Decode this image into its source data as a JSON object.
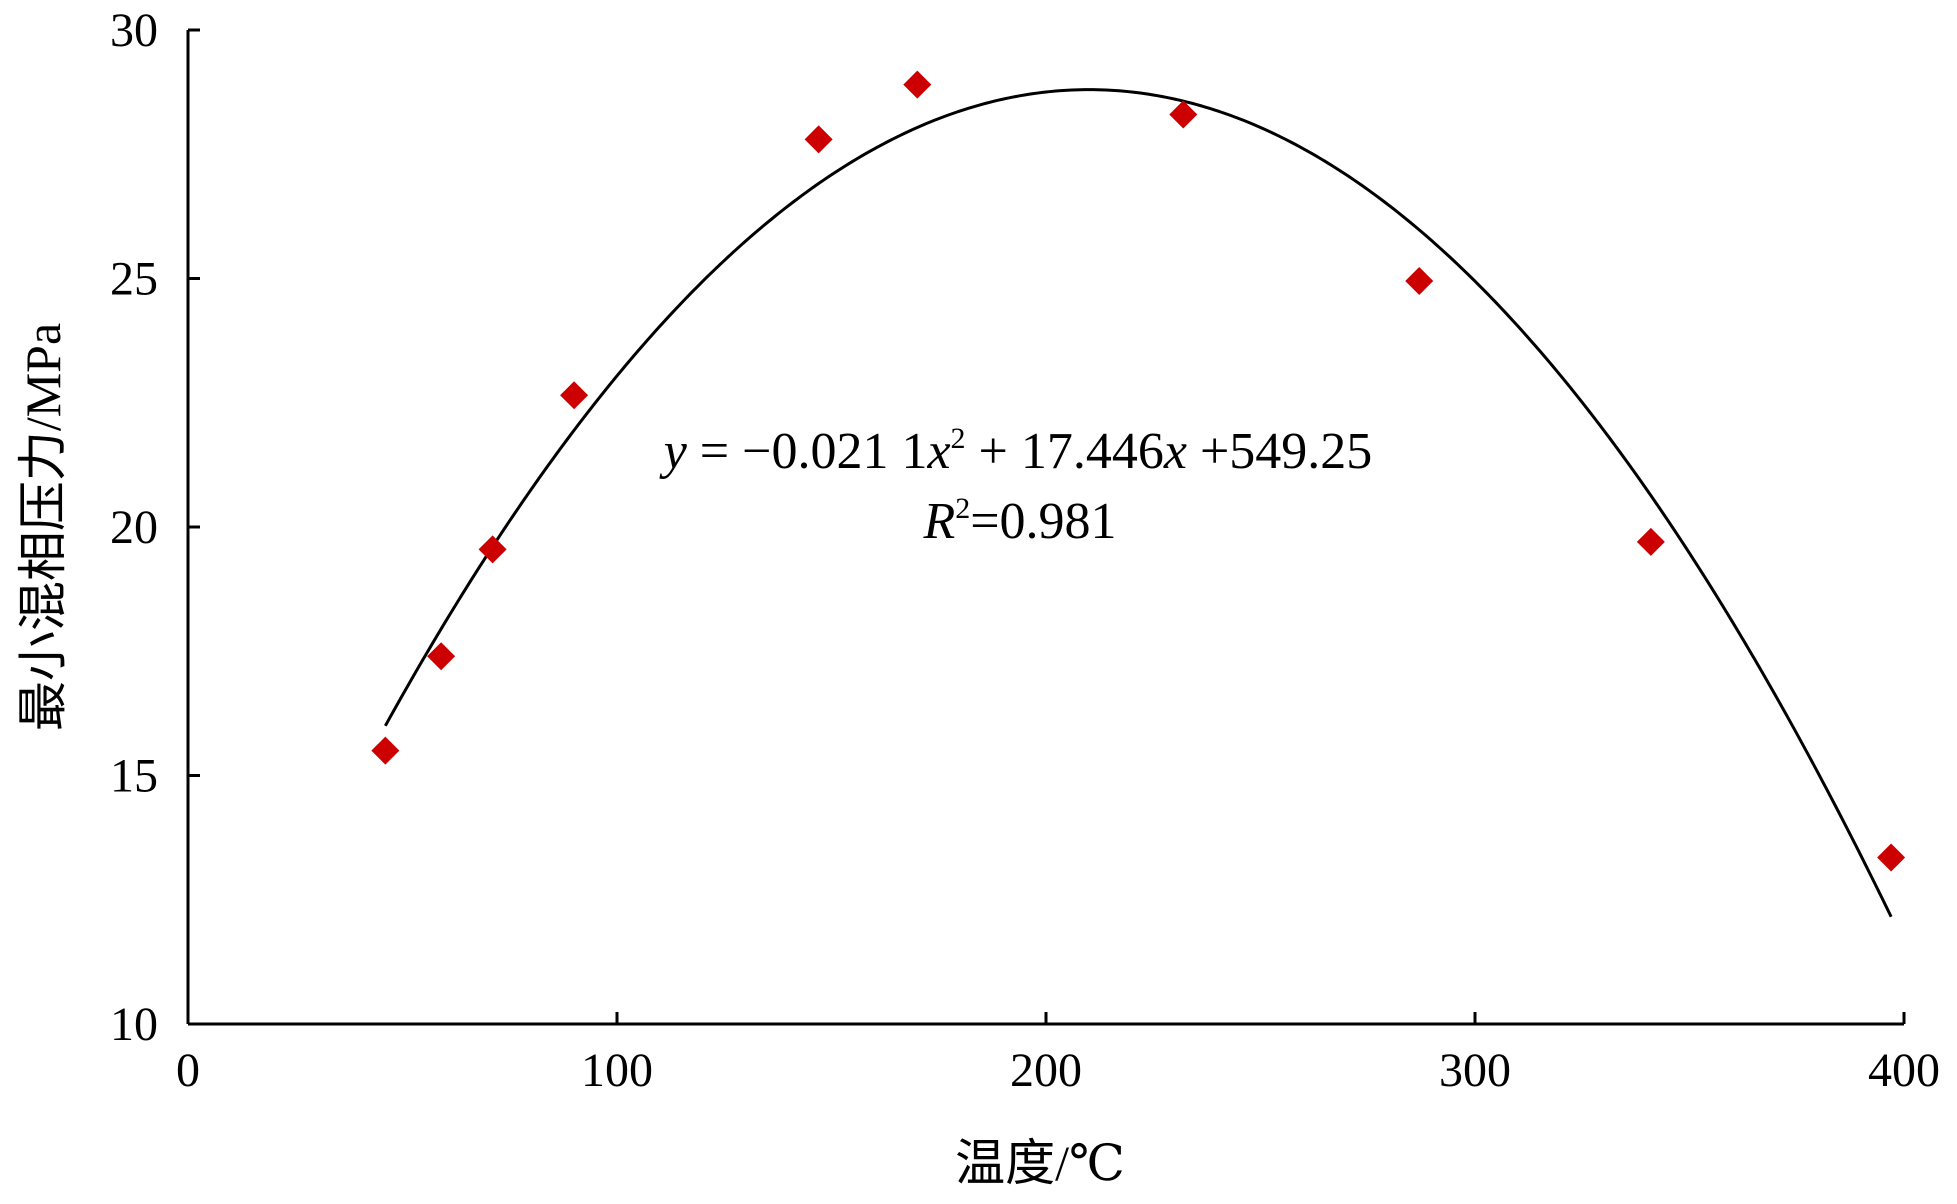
{
  "chart_data": {
    "type": "scatter",
    "title": "",
    "xlabel": "温度/℃",
    "ylabel": "最小混相压力/MPa",
    "xlim": [
      0,
      400
    ],
    "ylim": [
      10,
      30
    ],
    "x_ticks": [
      0,
      100,
      200,
      300,
      400
    ],
    "y_ticks": [
      10,
      15,
      20,
      25,
      30
    ],
    "x_tick_labels": [
      "0",
      "100",
      "200",
      "300",
      "400"
    ],
    "y_tick_labels": [
      "10",
      "15",
      "20",
      "25",
      "30"
    ],
    "grid": false,
    "legend": "none",
    "series": [
      {
        "marker": "diamond",
        "color": "#cc0000",
        "points": [
          {
            "x": 46,
            "y": 15.5
          },
          {
            "x": 59,
            "y": 17.4
          },
          {
            "x": 71,
            "y": 19.55
          },
          {
            "x": 90,
            "y": 22.65
          },
          {
            "x": 147,
            "y": 27.8
          },
          {
            "x": 170,
            "y": 28.9
          },
          {
            "x": 232,
            "y": 28.3
          },
          {
            "x": 287,
            "y": 24.95
          },
          {
            "x": 341,
            "y": 19.7
          },
          {
            "x": 397,
            "y": 13.35
          }
        ]
      }
    ],
    "trendline": {
      "type": "polynomial",
      "order": 2,
      "color": "#000000",
      "x_range": [
        46,
        397
      ],
      "peak": {
        "x": 210,
        "y": 28.8
      },
      "equation_parts": {
        "y": "y",
        "eq_rest": " = −0.021 1",
        "x1": "x",
        "sup2": "2",
        "mid": " + 17.446",
        "x2": "x",
        "end": " +549.25"
      },
      "r2_parts": {
        "R": "R",
        "sup2": "2",
        "value": "=0.981"
      }
    }
  }
}
